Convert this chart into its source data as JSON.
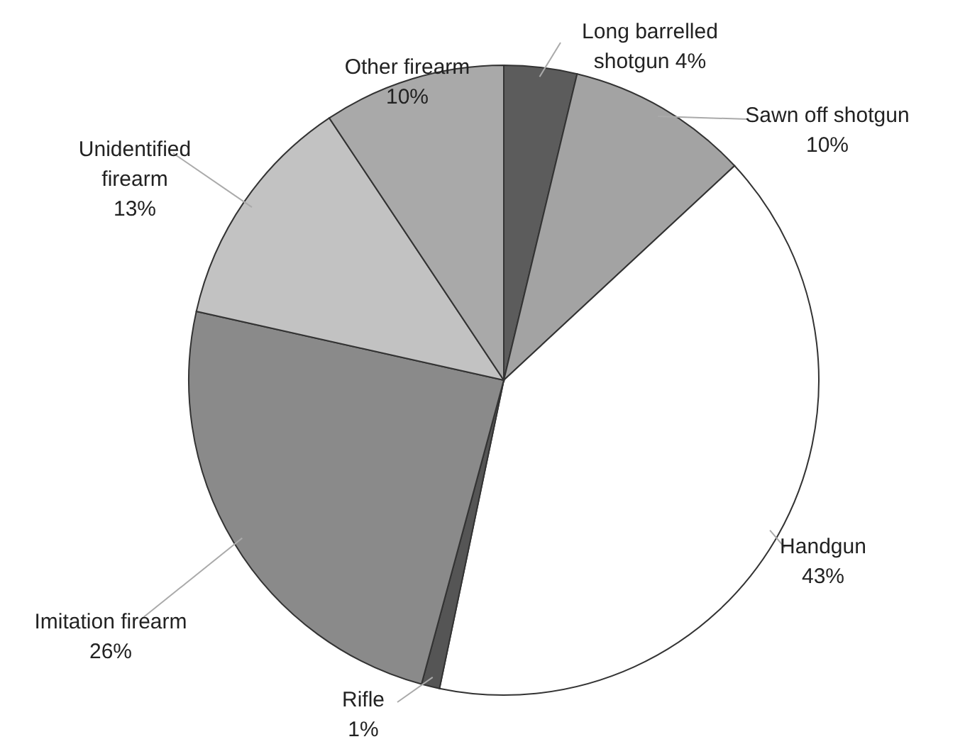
{
  "chart_data": {
    "type": "pie",
    "categories": [
      "Long barrelled shotgun",
      "Sawn off shotgun",
      "Handgun",
      "Rifle",
      "Imitation firearm",
      "Unidentified firearm",
      "Other firearm"
    ],
    "values": [
      4,
      10,
      43,
      1,
      26,
      13,
      10
    ],
    "value_labels": [
      "4%",
      "10%",
      "43%",
      "1%",
      "26%",
      "13%",
      "10%"
    ],
    "colors": [
      "#5c5c5c",
      "#a3a3a3",
      "#ffffff",
      "#555555",
      "#8a8a8a",
      "#c2c2c2",
      "#a9a9a9"
    ]
  }
}
